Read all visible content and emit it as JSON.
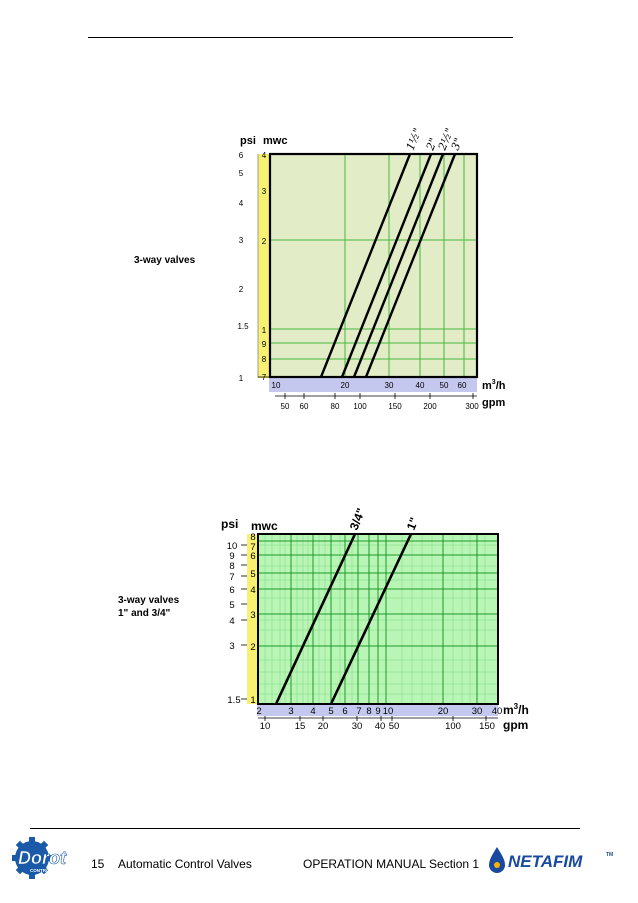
{
  "captions": {
    "chart1": "3-way valves",
    "chart2": "3-way valves\n1\" and 3/4\""
  },
  "footer": {
    "page_number": "15",
    "left_title": "Automatic Control Valves",
    "right_title": "OPERATION MANUAL Section 1",
    "left_logo_main": "Dorot",
    "left_logo_sub": "CONTROL VALVES",
    "right_logo": "NETAFIM",
    "right_logo_tm": "TM"
  },
  "colors": {
    "plot_bg_1": "#e2ecc6",
    "plot_bg_2": "#b9f5b5",
    "grid_1": "#44b83a",
    "grid_2": "#1a9a2a",
    "yellow_strip": "#f7f070",
    "x_strip": "#c5c8ee"
  },
  "chart_data": [
    {
      "type": "line",
      "title": "",
      "y_units": [
        "psi",
        "mwc"
      ],
      "x_units": [
        "m3/h",
        "gpm"
      ],
      "psi_ticks": [
        "6",
        "5",
        "4",
        "3",
        "2",
        "1.5",
        "1"
      ],
      "mwc_ticks": [
        "4",
        "3",
        "2",
        "1",
        "9",
        "8",
        "7"
      ],
      "m3h_ticks": [
        "10",
        "20",
        "30",
        "40",
        "50",
        "60"
      ],
      "gpm_ticks": [
        "50",
        "60",
        "80",
        "100",
        "150",
        "200",
        "300"
      ],
      "series": [
        {
          "name": "1½\"",
          "points": [
            [
              13.5,
              0.7
            ],
            [
              38,
              4
            ]
          ]
        },
        {
          "name": "2\"",
          "points": [
            [
              18,
              0.7
            ],
            [
              45,
              4
            ]
          ]
        },
        {
          "name": "2½\"",
          "points": [
            [
              20,
              0.7
            ],
            [
              50,
              4
            ]
          ]
        },
        {
          "name": "3\"",
          "points": [
            [
              22,
              0.7
            ],
            [
              55,
              4
            ]
          ]
        }
      ]
    },
    {
      "type": "line",
      "title": "",
      "y_units": [
        "psi",
        "mwc"
      ],
      "x_units": [
        "m3/h",
        "gpm"
      ],
      "psi_ticks": [
        "10",
        "9",
        "8",
        "7",
        "6",
        "5",
        "4",
        "3",
        "1.5"
      ],
      "mwc_ticks": [
        "8",
        "7",
        "6",
        "5",
        "4",
        "3",
        "2",
        "1"
      ],
      "m3h_ticks": [
        "2",
        "3",
        "4",
        "5",
        "6",
        "7",
        "8",
        "9",
        "10",
        "20",
        "30",
        "40"
      ],
      "gpm_ticks": [
        "10",
        "15",
        "20",
        "30",
        "40",
        "50",
        "100",
        "150"
      ],
      "series": [
        {
          "name": "3/4\"",
          "points": [
            [
              2.4,
              1
            ],
            [
              7.5,
              8
            ]
          ]
        },
        {
          "name": "1\"",
          "points": [
            [
              4.5,
              1
            ],
            [
              12.5,
              8
            ]
          ]
        }
      ]
    }
  ]
}
